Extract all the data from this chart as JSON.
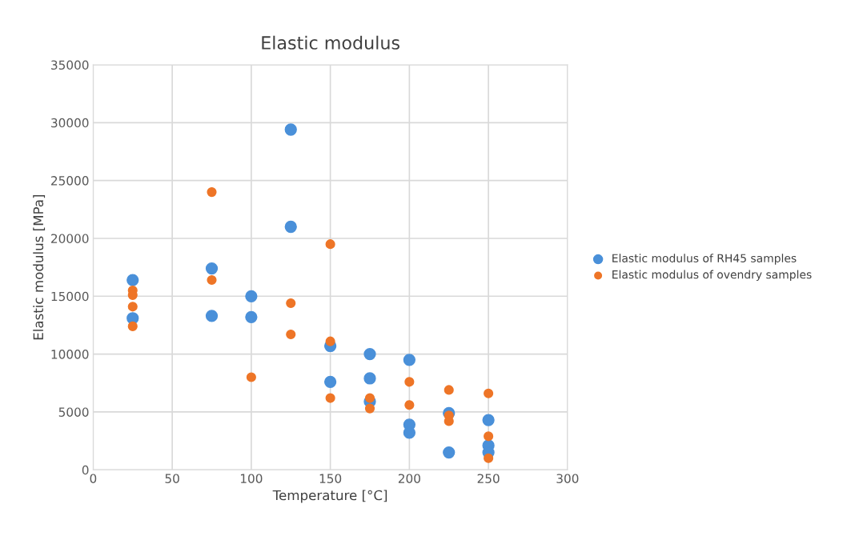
{
  "chart_data": {
    "type": "scatter",
    "title": "Elastic modulus",
    "xlabel": "Temperature [°C]",
    "ylabel": "Elastic modulus [MPa]",
    "xlim": [
      0,
      300
    ],
    "xticks": [
      0,
      50,
      100,
      150,
      200,
      250,
      300
    ],
    "ylim": [
      0,
      35000
    ],
    "yticks": [
      0,
      5000,
      10000,
      15000,
      20000,
      25000,
      30000,
      35000
    ],
    "grid": true,
    "legend": "right",
    "marker": "circle",
    "series": [
      {
        "name": "Elastic modulus of RH45 samples",
        "color": "#4a90d9",
        "x": [
          25,
          25,
          75,
          75,
          100,
          100,
          125,
          125,
          150,
          150,
          175,
          175,
          175,
          200,
          200,
          200,
          225,
          225,
          250,
          250,
          250
        ],
        "values": [
          16400,
          13100,
          17400,
          13300,
          15000,
          13200,
          29400,
          21000,
          10700,
          7600,
          10000,
          7900,
          5900,
          9500,
          3900,
          3200,
          4900,
          1500,
          4300,
          2100,
          1500
        ]
      },
      {
        "name": "Elastic modulus of ovendry samples",
        "color": "#ee7527",
        "x": [
          25,
          25,
          25,
          25,
          75,
          75,
          100,
          125,
          125,
          150,
          150,
          150,
          175,
          175,
          200,
          200,
          225,
          225,
          225,
          250,
          250,
          250
        ],
        "values": [
          15500,
          15100,
          14100,
          12400,
          24000,
          16400,
          8000,
          14400,
          11700,
          19500,
          11100,
          6200,
          6200,
          5300,
          7600,
          5600,
          6900,
          4700,
          4200,
          6600,
          2900,
          1000
        ]
      }
    ]
  }
}
